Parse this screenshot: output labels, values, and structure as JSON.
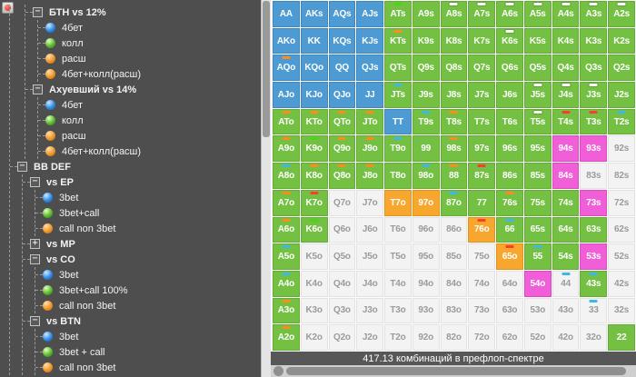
{
  "left_panel": {
    "tree": [
      {
        "label": "БТН vs 12%",
        "type": "branch",
        "state": "expanded",
        "indent": 1,
        "children": [
          {
            "label": "4бет",
            "dot": "blue"
          },
          {
            "label": "колл",
            "dot": "green"
          },
          {
            "label": "расш",
            "dot": "orange"
          },
          {
            "label": "4бет+колл(расш)",
            "dot": "orange"
          }
        ]
      },
      {
        "label": "Ахуевший vs 14%",
        "type": "branch",
        "state": "expanded",
        "indent": 1,
        "children": [
          {
            "label": "4бет",
            "dot": "blue"
          },
          {
            "label": "колл",
            "dot": "green"
          },
          {
            "label": "расш",
            "dot": "orange"
          },
          {
            "label": "4бет+колл(расш)",
            "dot": "orange"
          }
        ]
      },
      {
        "label": "BB DEF",
        "type": "branch",
        "state": "expanded",
        "indent": 0,
        "children": [
          {
            "label": "vs EP",
            "type": "branch",
            "state": "expanded",
            "children": [
              {
                "label": "3bet",
                "dot": "blue"
              },
              {
                "label": "3bet+call",
                "dot": "green"
              },
              {
                "label": "call non 3bet",
                "dot": "orange"
              }
            ]
          },
          {
            "label": "vs MP",
            "type": "branch",
            "state": "collapsed",
            "children": []
          },
          {
            "label": "vs CO",
            "type": "branch",
            "state": "expanded",
            "children": [
              {
                "label": "3bet",
                "dot": "blue"
              },
              {
                "label": "3bet+call 100%",
                "dot": "green"
              },
              {
                "label": "call non 3bet",
                "dot": "orange"
              }
            ]
          },
          {
            "label": "vs BTN",
            "type": "branch",
            "state": "expanded",
            "children": [
              {
                "label": "3bet",
                "dot": "blue"
              },
              {
                "label": "3bet + call",
                "dot": "green"
              },
              {
                "label": "call non 3bet",
                "dot": "orange"
              }
            ]
          }
        ]
      }
    ]
  },
  "grid": {
    "legend": {
      "cell_colors": {
        "g": "#74c043",
        "b": "#4d9bd2",
        "o": "#f7a62e",
        "p": "#f05fd8",
        "w": "#f3f3f3"
      },
      "mark_colors": {
        "o": "#ff8c1a",
        "b": "#3db7e8",
        "g": "#45d815",
        "r": "#ff3b30",
        "w": "#ffffff"
      }
    },
    "rows": [
      [
        {
          "h": "AA",
          "c": "b"
        },
        {
          "h": "AKs",
          "c": "b"
        },
        {
          "h": "AQs",
          "c": "b"
        },
        {
          "h": "AJs",
          "c": "b"
        },
        {
          "h": "ATs",
          "c": "g",
          "m": "g"
        },
        {
          "h": "A9s",
          "c": "g"
        },
        {
          "h": "A8s",
          "c": "g",
          "m": "w"
        },
        {
          "h": "A7s",
          "c": "g",
          "m": "w"
        },
        {
          "h": "A6s",
          "c": "g",
          "m": "w"
        },
        {
          "h": "A5s",
          "c": "g",
          "m": "w"
        },
        {
          "h": "A4s",
          "c": "g",
          "m": "w"
        },
        {
          "h": "A3s",
          "c": "g",
          "m": "w"
        },
        {
          "h": "A2s",
          "c": "g",
          "m": "w"
        }
      ],
      [
        {
          "h": "AKo",
          "c": "b"
        },
        {
          "h": "KK",
          "c": "b"
        },
        {
          "h": "KQs",
          "c": "b"
        },
        {
          "h": "KJs",
          "c": "b"
        },
        {
          "h": "KTs",
          "c": "g",
          "m": "o"
        },
        {
          "h": "K9s",
          "c": "g"
        },
        {
          "h": "K8s",
          "c": "g"
        },
        {
          "h": "K7s",
          "c": "g"
        },
        {
          "h": "K6s",
          "c": "g",
          "m": "w"
        },
        {
          "h": "K5s",
          "c": "g"
        },
        {
          "h": "K4s",
          "c": "g"
        },
        {
          "h": "K3s",
          "c": "g"
        },
        {
          "h": "K2s",
          "c": "g"
        }
      ],
      [
        {
          "h": "AQo",
          "c": "b",
          "m": "o"
        },
        {
          "h": "KQo",
          "c": "b"
        },
        {
          "h": "QQ",
          "c": "b"
        },
        {
          "h": "QJs",
          "c": "b"
        },
        {
          "h": "QTs",
          "c": "g"
        },
        {
          "h": "Q9s",
          "c": "g"
        },
        {
          "h": "Q8s",
          "c": "g"
        },
        {
          "h": "Q7s",
          "c": "g"
        },
        {
          "h": "Q6s",
          "c": "g"
        },
        {
          "h": "Q5s",
          "c": "g"
        },
        {
          "h": "Q4s",
          "c": "g"
        },
        {
          "h": "Q3s",
          "c": "g"
        },
        {
          "h": "Q2s",
          "c": "g"
        }
      ],
      [
        {
          "h": "AJo",
          "c": "b"
        },
        {
          "h": "KJo",
          "c": "b"
        },
        {
          "h": "QJo",
          "c": "b"
        },
        {
          "h": "JJ",
          "c": "b"
        },
        {
          "h": "JTs",
          "c": "g",
          "m": "b"
        },
        {
          "h": "J9s",
          "c": "g"
        },
        {
          "h": "J8s",
          "c": "g"
        },
        {
          "h": "J7s",
          "c": "g"
        },
        {
          "h": "J6s",
          "c": "g"
        },
        {
          "h": "J5s",
          "c": "g",
          "m": "w"
        },
        {
          "h": "J4s",
          "c": "g",
          "m": "w"
        },
        {
          "h": "J3s",
          "c": "g",
          "m": "w"
        },
        {
          "h": "J2s",
          "c": "g"
        }
      ],
      [
        {
          "h": "ATo",
          "c": "g",
          "m": "o"
        },
        {
          "h": "KTo",
          "c": "g",
          "m": "o"
        },
        {
          "h": "QTo",
          "c": "g",
          "m": "o"
        },
        {
          "h": "JTo",
          "c": "g",
          "m": "o"
        },
        {
          "h": "TT",
          "c": "b"
        },
        {
          "h": "T9s",
          "c": "g",
          "m": "b"
        },
        {
          "h": "T8s",
          "c": "g",
          "m": "o"
        },
        {
          "h": "T7s",
          "c": "g"
        },
        {
          "h": "T6s",
          "c": "g"
        },
        {
          "h": "T5s",
          "c": "g",
          "m": "w"
        },
        {
          "h": "T4s",
          "c": "g",
          "m": "r"
        },
        {
          "h": "T3s",
          "c": "g",
          "m": "r"
        },
        {
          "h": "T2s",
          "c": "g",
          "m": "b"
        }
      ],
      [
        {
          "h": "A9o",
          "c": "g",
          "m": "o"
        },
        {
          "h": "K9o",
          "c": "g",
          "m": "g"
        },
        {
          "h": "Q9o",
          "c": "g",
          "m": "o"
        },
        {
          "h": "J9o",
          "c": "g",
          "m": "o"
        },
        {
          "h": "T9o",
          "c": "g",
          "m": "b"
        },
        {
          "h": "99",
          "c": "g"
        },
        {
          "h": "98s",
          "c": "g",
          "m": "o"
        },
        {
          "h": "97s",
          "c": "g"
        },
        {
          "h": "96s",
          "c": "g"
        },
        {
          "h": "95s",
          "c": "g"
        },
        {
          "h": "94s",
          "c": "p"
        },
        {
          "h": "93s",
          "c": "p"
        },
        {
          "h": "92s",
          "c": "w"
        }
      ],
      [
        {
          "h": "A8o",
          "c": "g",
          "m": "b"
        },
        {
          "h": "K8o",
          "c": "g",
          "m": "o"
        },
        {
          "h": "Q8o",
          "c": "g",
          "m": "o"
        },
        {
          "h": "J8o",
          "c": "g",
          "m": "o"
        },
        {
          "h": "T8o",
          "c": "g"
        },
        {
          "h": "98o",
          "c": "g",
          "m": "b"
        },
        {
          "h": "88",
          "c": "g",
          "m": "o"
        },
        {
          "h": "87s",
          "c": "g",
          "m": "r"
        },
        {
          "h": "86s",
          "c": "g"
        },
        {
          "h": "85s",
          "c": "g"
        },
        {
          "h": "84s",
          "c": "p"
        },
        {
          "h": "83s",
          "c": "w"
        },
        {
          "h": "82s",
          "c": "w"
        }
      ],
      [
        {
          "h": "A7o",
          "c": "g",
          "m": "o"
        },
        {
          "h": "K7o",
          "c": "g",
          "m": "r"
        },
        {
          "h": "Q7o",
          "c": "w"
        },
        {
          "h": "J7o",
          "c": "w"
        },
        {
          "h": "T7o",
          "c": "o"
        },
        {
          "h": "97o",
          "c": "o"
        },
        {
          "h": "87o",
          "c": "g",
          "m": "b"
        },
        {
          "h": "77",
          "c": "g"
        },
        {
          "h": "76s",
          "c": "g",
          "m": "o"
        },
        {
          "h": "75s",
          "c": "g"
        },
        {
          "h": "74s",
          "c": "g"
        },
        {
          "h": "73s",
          "c": "p"
        },
        {
          "h": "72s",
          "c": "w"
        }
      ],
      [
        {
          "h": "A6o",
          "c": "g",
          "m": "o"
        },
        {
          "h": "K6o",
          "c": "g",
          "m": "g"
        },
        {
          "h": "Q6o",
          "c": "w"
        },
        {
          "h": "J6o",
          "c": "w"
        },
        {
          "h": "T6o",
          "c": "w"
        },
        {
          "h": "96o",
          "c": "w"
        },
        {
          "h": "86o",
          "c": "w"
        },
        {
          "h": "76o",
          "c": "o",
          "m": "r"
        },
        {
          "h": "66",
          "c": "g",
          "m": "b"
        },
        {
          "h": "65s",
          "c": "g"
        },
        {
          "h": "64s",
          "c": "g"
        },
        {
          "h": "63s",
          "c": "g"
        },
        {
          "h": "62s",
          "c": "w"
        }
      ],
      [
        {
          "h": "A5o",
          "c": "g",
          "m": "b"
        },
        {
          "h": "K5o",
          "c": "w"
        },
        {
          "h": "Q5o",
          "c": "w"
        },
        {
          "h": "J5o",
          "c": "w"
        },
        {
          "h": "T5o",
          "c": "w"
        },
        {
          "h": "95o",
          "c": "w"
        },
        {
          "h": "85o",
          "c": "w"
        },
        {
          "h": "75o",
          "c": "w"
        },
        {
          "h": "65o",
          "c": "o",
          "m": "r"
        },
        {
          "h": "55",
          "c": "g",
          "m": "b"
        },
        {
          "h": "54s",
          "c": "g"
        },
        {
          "h": "53s",
          "c": "p"
        },
        {
          "h": "52s",
          "c": "w"
        }
      ],
      [
        {
          "h": "A4o",
          "c": "g",
          "m": "b"
        },
        {
          "h": "K4o",
          "c": "w"
        },
        {
          "h": "Q4o",
          "c": "w"
        },
        {
          "h": "J4o",
          "c": "w"
        },
        {
          "h": "T4o",
          "c": "w"
        },
        {
          "h": "94o",
          "c": "w"
        },
        {
          "h": "84o",
          "c": "w"
        },
        {
          "h": "74o",
          "c": "w"
        },
        {
          "h": "64o",
          "c": "w"
        },
        {
          "h": "54o",
          "c": "p"
        },
        {
          "h": "44",
          "c": "w",
          "m": "b"
        },
        {
          "h": "43s",
          "c": "g",
          "m": "b"
        },
        {
          "h": "42s",
          "c": "w"
        }
      ],
      [
        {
          "h": "A3o",
          "c": "g",
          "m": "o"
        },
        {
          "h": "K3o",
          "c": "w"
        },
        {
          "h": "Q3o",
          "c": "w"
        },
        {
          "h": "J3o",
          "c": "w"
        },
        {
          "h": "T3o",
          "c": "w"
        },
        {
          "h": "93o",
          "c": "w"
        },
        {
          "h": "83o",
          "c": "w"
        },
        {
          "h": "73o",
          "c": "w"
        },
        {
          "h": "63o",
          "c": "w"
        },
        {
          "h": "53o",
          "c": "w"
        },
        {
          "h": "43o",
          "c": "w"
        },
        {
          "h": "33",
          "c": "w",
          "m": "b"
        },
        {
          "h": "32s",
          "c": "w"
        }
      ],
      [
        {
          "h": "A2o",
          "c": "g",
          "m": "o"
        },
        {
          "h": "K2o",
          "c": "w"
        },
        {
          "h": "Q2o",
          "c": "w"
        },
        {
          "h": "J2o",
          "c": "w"
        },
        {
          "h": "T2o",
          "c": "w"
        },
        {
          "h": "92o",
          "c": "w"
        },
        {
          "h": "82o",
          "c": "w"
        },
        {
          "h": "72o",
          "c": "w"
        },
        {
          "h": "62o",
          "c": "w"
        },
        {
          "h": "52o",
          "c": "w"
        },
        {
          "h": "42o",
          "c": "w"
        },
        {
          "h": "32o",
          "c": "w"
        },
        {
          "h": "22",
          "c": "g"
        }
      ]
    ]
  },
  "status_bar": {
    "text": "417.13 комбинаций в префлоп-спектре"
  }
}
